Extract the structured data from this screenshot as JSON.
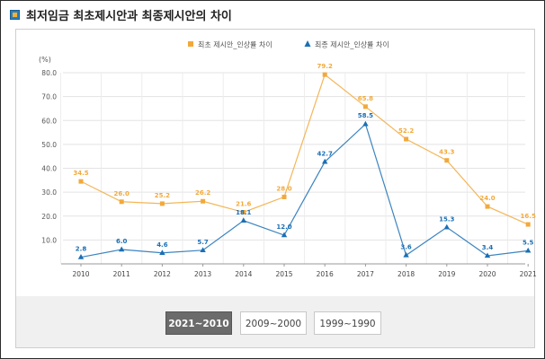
{
  "header": {
    "title": "최저임금 최초제시안과 최종제시안의 차이"
  },
  "period_buttons": [
    {
      "label": "2021~2010",
      "active": true
    },
    {
      "label": "2009~2000",
      "active": false
    },
    {
      "label": "1999~1990",
      "active": false
    }
  ],
  "chart_data": {
    "type": "line",
    "title": "",
    "xlabel": "",
    "ylabel": "(%)",
    "ylim": [
      0,
      80
    ],
    "yticks": [
      "10.0",
      "20.0",
      "30.0",
      "40.0",
      "50.0",
      "60.0",
      "70.0",
      "80.0"
    ],
    "grid": true,
    "legend_position": "top-right",
    "categories": [
      "2010",
      "2011",
      "2012",
      "2013",
      "2014",
      "2015",
      "2016",
      "2017",
      "2018",
      "2019",
      "2020",
      "2021"
    ],
    "series": [
      {
        "name": "최초 제시안_인상률 차이",
        "color": "#f2a93b",
        "values": [
          34.5,
          26.0,
          25.2,
          26.2,
          21.6,
          28.0,
          79.2,
          65.8,
          52.2,
          43.3,
          24.0,
          16.5
        ],
        "labels": [
          "34.5",
          "26.0",
          "25.2",
          "26.2",
          "21.6",
          "28.0",
          "79.2",
          "65.8",
          "52.2",
          "43.3",
          "24.0",
          "16.5"
        ]
      },
      {
        "name": "최종 제시안_인상률 차이",
        "color": "#1a6fb5",
        "values": [
          2.8,
          6.0,
          4.6,
          5.7,
          18.1,
          12.0,
          42.7,
          58.5,
          3.6,
          15.3,
          3.4,
          5.5
        ],
        "labels": [
          "2.8",
          "6.0",
          "4.6",
          "5.7",
          "18.1",
          "12.0",
          "42.7",
          "58.5",
          "3.6",
          "15.3",
          "3.4",
          "5.5"
        ]
      }
    ]
  }
}
